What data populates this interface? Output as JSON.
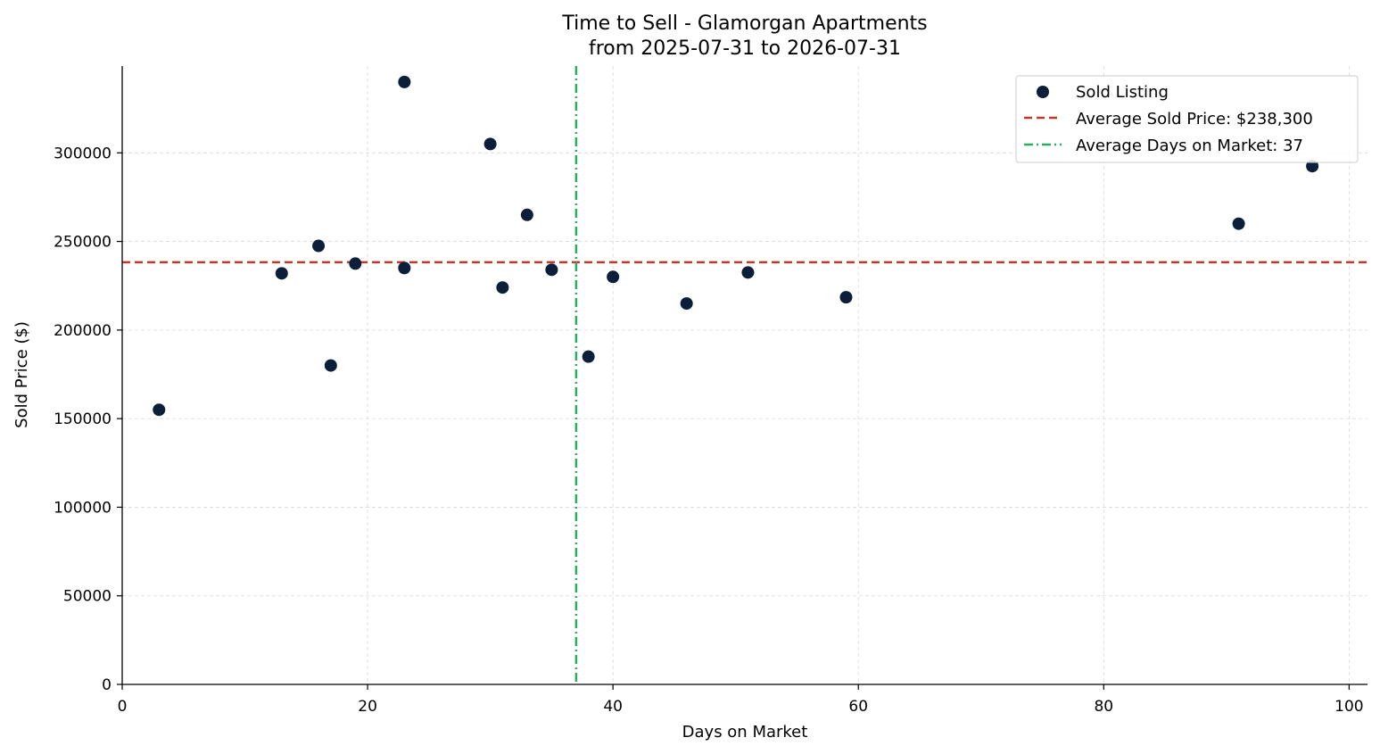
{
  "chart_data": {
    "type": "scatter",
    "title": "Time to Sell - Glamorgan Apartments",
    "subtitle": "from 2025-07-31 to 2026-07-31",
    "xlabel": "Days on Market",
    "ylabel": "Sold Price ($)",
    "xlim": [
      0,
      101.5
    ],
    "ylim": [
      0,
      349000
    ],
    "xticks": [
      0,
      20,
      40,
      60,
      80,
      100
    ],
    "yticks": [
      0,
      50000,
      100000,
      150000,
      200000,
      250000,
      300000
    ],
    "grid": true,
    "legend_position": "top-right",
    "series": [
      {
        "name": "Sold Listing",
        "color": "#0b1f3a",
        "points": [
          {
            "x": 3,
            "y": 155000
          },
          {
            "x": 13,
            "y": 232000
          },
          {
            "x": 16,
            "y": 247500
          },
          {
            "x": 17,
            "y": 180000
          },
          {
            "x": 19,
            "y": 237500
          },
          {
            "x": 23,
            "y": 340000
          },
          {
            "x": 23,
            "y": 235000
          },
          {
            "x": 30,
            "y": 305000
          },
          {
            "x": 31,
            "y": 224000
          },
          {
            "x": 33,
            "y": 265000
          },
          {
            "x": 35,
            "y": 234000
          },
          {
            "x": 38,
            "y": 185000
          },
          {
            "x": 40,
            "y": 230000
          },
          {
            "x": 46,
            "y": 215000
          },
          {
            "x": 51,
            "y": 232500
          },
          {
            "x": 59,
            "y": 218500
          },
          {
            "x": 91,
            "y": 260000
          },
          {
            "x": 97,
            "y": 292500
          }
        ]
      }
    ],
    "reference_lines": [
      {
        "name": "Average Sold Price: $238,300",
        "orientation": "horizontal",
        "value": 238300,
        "color": "#c0392b",
        "style": "dashed"
      },
      {
        "name": "Average Days on Market: 37",
        "orientation": "vertical",
        "value": 37,
        "color": "#27ae60",
        "style": "dashdot"
      }
    ]
  }
}
